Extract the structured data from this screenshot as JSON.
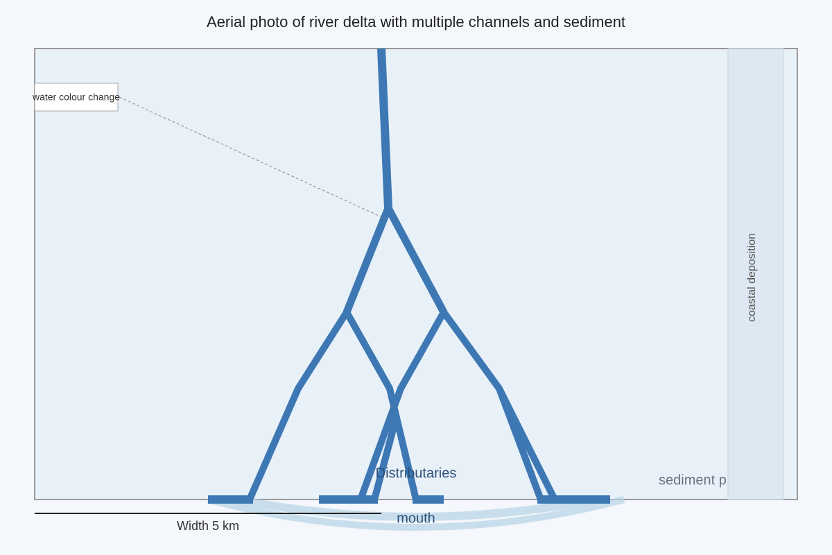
{
  "header": {
    "title": "Aerial photo of river delta with multiple channels and sediment"
  },
  "annotations": {
    "water_colour": "water colour change",
    "coastal": "coastal deposition",
    "plume": "sediment p",
    "distributaries": "Distributaries",
    "mouth": "mouth",
    "scale": "Width 5 km"
  }
}
